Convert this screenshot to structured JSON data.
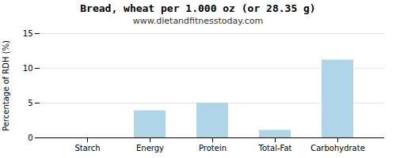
{
  "chart_data": {
    "type": "bar",
    "title": "Bread, wheat per 1.000 oz (or 28.35 g)",
    "subtitle": "www.dietandfitnesstoday.com",
    "categories": [
      "Starch",
      "Energy",
      "Protein",
      "Total-Fat",
      "Carbohydrate"
    ],
    "values": [
      0,
      3.9,
      5.0,
      1.1,
      11.2
    ],
    "color": "#aed6e8",
    "ylabel": "Percentage of RDH (%)",
    "ylim": [
      0,
      15
    ],
    "yticks": [
      0,
      5,
      10,
      15
    ],
    "grid": true
  }
}
